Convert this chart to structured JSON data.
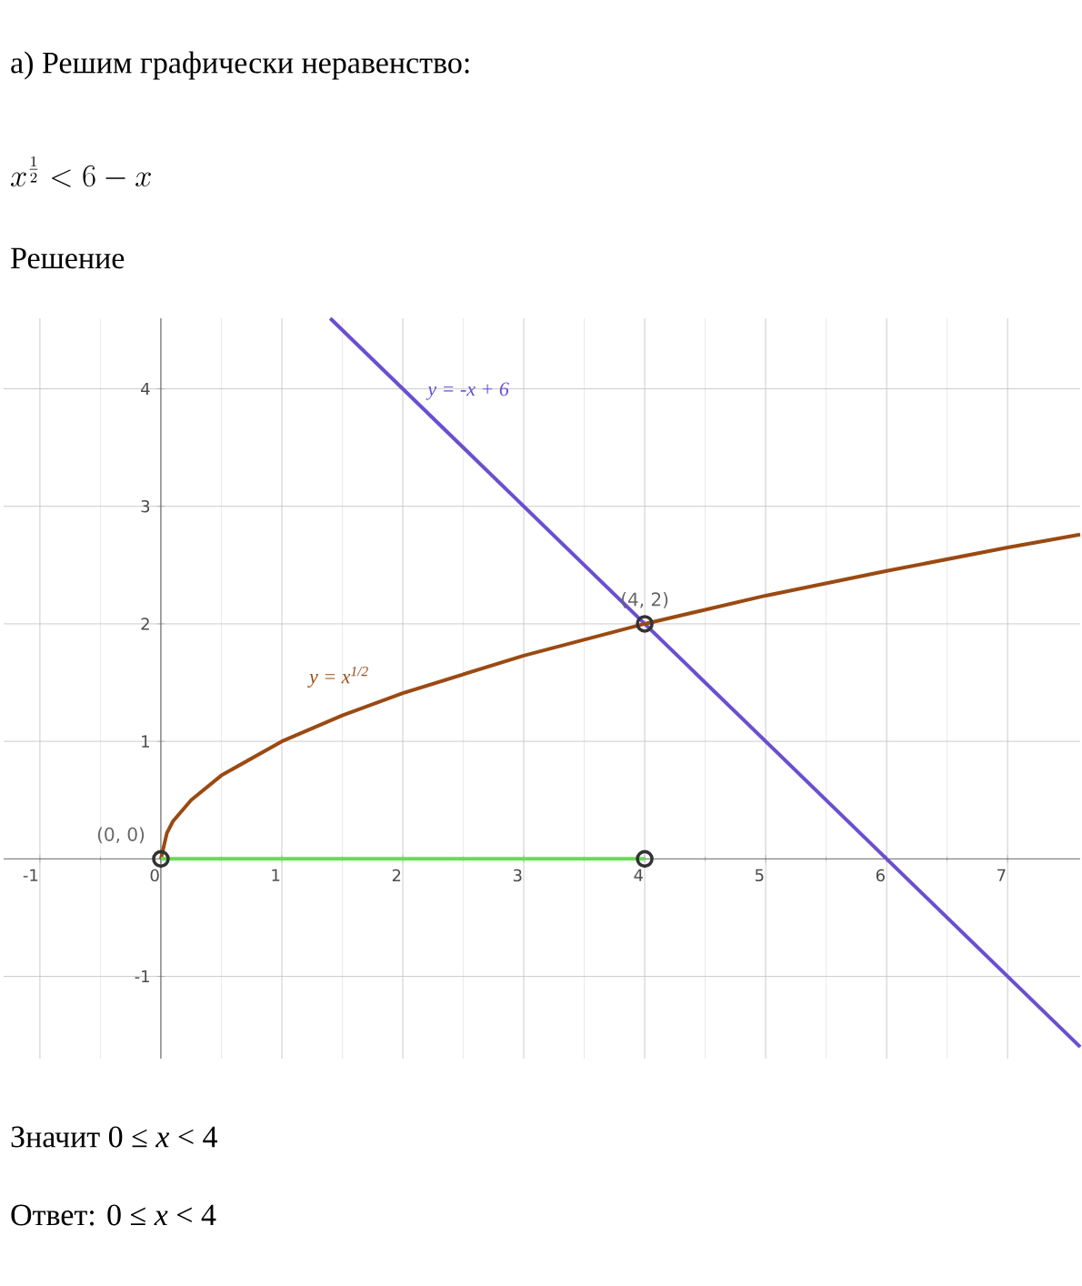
{
  "chart_data": {
    "type": "line",
    "title": "а) Решим графически неравенство:",
    "subtitle": "x^{\\frac{1}{2}} < 6 - x",
    "annotations": [
      "Решение",
      {
        "text": "(0, 0)",
        "x": 0,
        "y": 0
      },
      {
        "text": "(4, 2)",
        "x": 4,
        "y": 2
      },
      "Значит 0 ≤ *x* < 4",
      "Ответ: 0 ≤ *x* < 4"
    ],
    "xlim": [
      -1.3,
      7.6
    ],
    "ylim": [
      -1.7,
      4.6
    ],
    "xticks": [
      -1,
      0,
      1,
      2,
      3,
      4,
      5,
      6,
      7
    ],
    "yticks": [
      -1,
      1,
      2,
      3,
      4
    ],
    "grid": true,
    "series": [
      {
        "name": "y = -x + 6",
        "color": "#6a4fd0",
        "x": [
          1.4,
          7.6
        ],
        "values": [
          4.6,
          -1.6
        ]
      },
      {
        "name": "y = x$^{1/2}$",
        "color": "#9a4a12",
        "x": [
          0,
          0.05,
          0.1,
          0.25,
          0.5,
          1,
          1.5,
          2,
          3,
          4,
          5,
          6,
          7,
          7.6
        ],
        "values": [
          0,
          0.22,
          0.32,
          0.5,
          0.71,
          1,
          1.22,
          1.41,
          1.73,
          2,
          2.24,
          2.45,
          2.65,
          2.76
        ]
      },
      {
        "color": "#66dd55",
        "x": [
          0,
          4
        ],
        "values": [
          0,
          0
        ]
      },
      {
        "type": "scatter",
        "color": "#333333",
        "marker": "circle",
        "x": [
          0,
          4,
          4
        ],
        "values": [
          0,
          2,
          0
        ]
      }
    ]
  }
}
